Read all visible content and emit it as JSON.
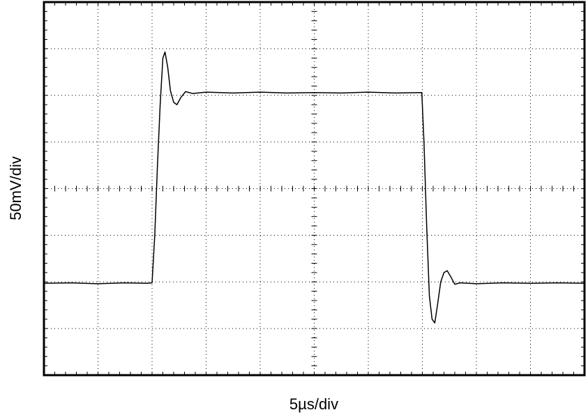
{
  "chart_data": {
    "type": "line",
    "xlabel": "5µs/div",
    "ylabel": "50mV/div",
    "xlim": [
      0,
      10
    ],
    "ylim": [
      -4,
      4
    ],
    "xticks": [
      0,
      1,
      2,
      3,
      4,
      5,
      6,
      7,
      8,
      9,
      10
    ],
    "yticks": [
      -4,
      -3,
      -2,
      -1,
      0,
      1,
      2,
      3,
      4
    ],
    "grid": true,
    "tick_labels": false,
    "color": "#000000",
    "x": [
      0,
      0.5,
      1.0,
      1.5,
      1.9,
      2.0,
      2.05,
      2.1,
      2.15,
      2.2,
      2.24,
      2.29,
      2.34,
      2.4,
      2.46,
      2.53,
      2.62,
      2.75,
      3.0,
      3.5,
      4.0,
      4.5,
      5.0,
      5.5,
      6.0,
      6.5,
      6.99,
      7.03,
      7.08,
      7.13,
      7.18,
      7.23,
      7.28,
      7.34,
      7.4,
      7.46,
      7.53,
      7.6,
      7.7,
      8.0,
      8.5,
      9.0,
      9.5,
      10.0
    ],
    "values": [
      -2.03,
      -2.02,
      -2.04,
      -2.02,
      -2.03,
      -2.02,
      -1.0,
      0.5,
      1.8,
      2.8,
      2.93,
      2.6,
      2.1,
      1.85,
      1.8,
      1.95,
      2.08,
      2.04,
      2.07,
      2.05,
      2.07,
      2.05,
      2.06,
      2.05,
      2.07,
      2.05,
      2.06,
      1.0,
      -0.8,
      -2.3,
      -2.8,
      -2.88,
      -2.5,
      -2.0,
      -1.8,
      -1.76,
      -1.9,
      -2.05,
      -2.02,
      -2.04,
      -2.02,
      -2.03,
      -2.02,
      -2.03
    ]
  }
}
